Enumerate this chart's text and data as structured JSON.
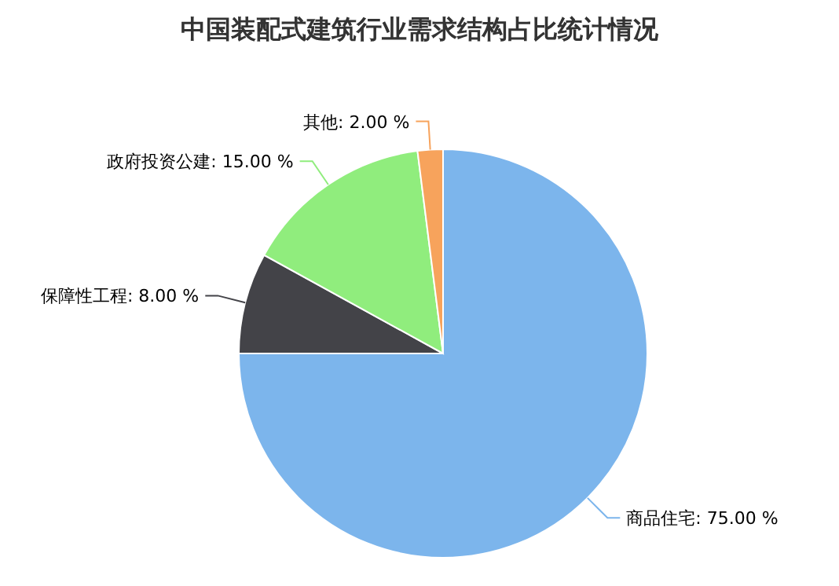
{
  "chart_data": {
    "type": "pie",
    "title": "中国装配式建筑行业需求结构占比统计情况",
    "categories": [
      "商品住宅",
      "保障性工程",
      "政府投资公建",
      "其他"
    ],
    "values": [
      75,
      8,
      15,
      2
    ],
    "colors": [
      "#7cb5ec",
      "#434348",
      "#90ed7d",
      "#f7a35c"
    ],
    "value_labels": [
      "75.00 %",
      "8.00 %",
      "15.00 %",
      "2.00 %"
    ]
  }
}
